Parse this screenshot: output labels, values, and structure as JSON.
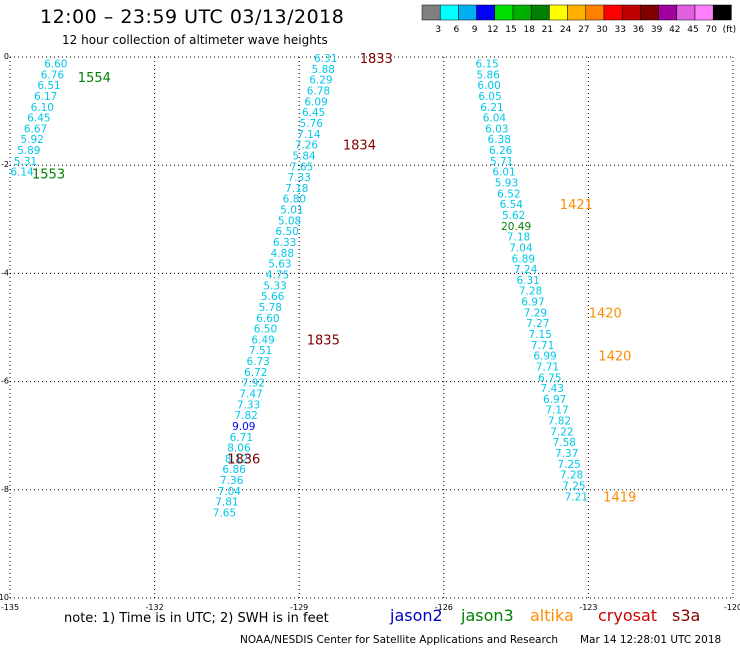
{
  "title": "12:00 – 23:59 UTC 03/13/2018",
  "subtitle": "12 hour collection of altimeter wave heights",
  "colorbar": {
    "colors": [
      "#808080",
      "#00ffff",
      "#00b0f0",
      "#0000ff",
      "#00e000",
      "#00b000",
      "#008000",
      "#ffff00",
      "#ffb000",
      "#ff8000",
      "#ff0000",
      "#c00000",
      "#800000",
      "#a000a0",
      "#e060e0",
      "#ff80ff",
      "#000000"
    ],
    "labels": [
      "3",
      "6",
      "9",
      "12",
      "15",
      "18",
      "21",
      "24",
      "27",
      "30",
      "33",
      "36",
      "39",
      "42",
      "45",
      "70",
      "(ft)"
    ]
  },
  "note": "note:  1) Time is in UTC;  2) SWH is in feet",
  "satellites": [
    {
      "name": "jason2",
      "color": "#0000cc"
    },
    {
      "name": "jason3",
      "color": "#008000"
    },
    {
      "name": "altika",
      "color": "#ff8c00"
    },
    {
      "name": "cryosat",
      "color": "#cc0000"
    },
    {
      "name": "s3a",
      "color": "#800000"
    }
  ],
  "footer_left": "NOAA/NESDIS Center for Satellite Applications and Research",
  "footer_right": "Mar 14 12:28:01 UTC 2018",
  "chart_data": {
    "type": "scatter",
    "xlim": [
      -135,
      -120
    ],
    "ylim": [
      -10,
      0
    ],
    "xticks": [
      "-135",
      "-132",
      "-129",
      "-126",
      "-123",
      "-120"
    ],
    "yticks": [
      "0",
      "-2",
      "-4",
      "-6",
      "-8",
      "-10"
    ],
    "grid": true,
    "tracks": [
      {
        "name": "jason3",
        "color": "#00c8e8",
        "points": [
          {
            "lon": -134.05,
            "lat": -0.12,
            "swh": "6.60"
          },
          {
            "lon": -134.12,
            "lat": -0.32,
            "swh": "6.76"
          },
          {
            "lon": -134.19,
            "lat": -0.52,
            "swh": "6.51"
          },
          {
            "lon": -134.26,
            "lat": -0.72,
            "swh": "6.17"
          },
          {
            "lon": -134.33,
            "lat": -0.92,
            "swh": "6.10"
          },
          {
            "lon": -134.4,
            "lat": -1.12,
            "swh": "6.45"
          },
          {
            "lon": -134.47,
            "lat": -1.32,
            "swh": "6.67"
          },
          {
            "lon": -134.54,
            "lat": -1.52,
            "swh": "5.92"
          },
          {
            "lon": -134.61,
            "lat": -1.72,
            "swh": "5.89"
          },
          {
            "lon": -134.68,
            "lat": -1.92,
            "swh": "5.31"
          },
          {
            "lon": -134.75,
            "lat": -2.12,
            "swh": "6.14"
          }
        ],
        "labels": [
          {
            "text": "1554",
            "lon": -133.25,
            "lat": -0.37
          },
          {
            "text": "1553",
            "lon": -134.2,
            "lat": -2.15
          }
        ],
        "label_color": "#008000"
      },
      {
        "name": "s3a",
        "color": "#00c8e8",
        "points": [
          {
            "lon": -128.45,
            "lat": -0.02,
            "swh": "6.31"
          },
          {
            "lon": -128.5,
            "lat": -0.22,
            "swh": "5.88"
          },
          {
            "lon": -128.55,
            "lat": -0.42,
            "swh": "6.29"
          },
          {
            "lon": -128.6,
            "lat": -0.62,
            "swh": "6.78"
          },
          {
            "lon": -128.65,
            "lat": -0.82,
            "swh": "6.09"
          },
          {
            "lon": -128.7,
            "lat": -1.02,
            "swh": "6.45"
          },
          {
            "lon": -128.75,
            "lat": -1.22,
            "swh": "5.76"
          },
          {
            "lon": -128.8,
            "lat": -1.42,
            "swh": "7.14"
          },
          {
            "lon": -128.85,
            "lat": -1.62,
            "swh": "7.26"
          },
          {
            "lon": -128.9,
            "lat": -1.82,
            "swh": "5.84"
          },
          {
            "lon": -128.95,
            "lat": -2.02,
            "swh": "7.65"
          },
          {
            "lon": -129.0,
            "lat": -2.22,
            "swh": "7.33"
          },
          {
            "lon": -129.05,
            "lat": -2.42,
            "swh": "7.18"
          },
          {
            "lon": -129.1,
            "lat": -2.62,
            "swh": "6.80"
          },
          {
            "lon": -129.15,
            "lat": -2.82,
            "swh": "5.01"
          },
          {
            "lon": -129.2,
            "lat": -3.02,
            "swh": "5.08"
          },
          {
            "lon": -129.25,
            "lat": -3.22,
            "swh": "6.50"
          },
          {
            "lon": -129.3,
            "lat": -3.42,
            "swh": "6.33"
          },
          {
            "lon": -129.35,
            "lat": -3.62,
            "swh": "4.88"
          },
          {
            "lon": -129.4,
            "lat": -3.82,
            "swh": "5.63"
          },
          {
            "lon": -129.45,
            "lat": -4.02,
            "swh": "4.75"
          },
          {
            "lon": -129.5,
            "lat": -4.22,
            "swh": "5.33"
          },
          {
            "lon": -129.55,
            "lat": -4.42,
            "swh": "5.66"
          },
          {
            "lon": -129.6,
            "lat": -4.62,
            "swh": "5.78"
          },
          {
            "lon": -129.65,
            "lat": -4.82,
            "swh": "6.60"
          },
          {
            "lon": -129.7,
            "lat": -5.02,
            "swh": "6.50"
          },
          {
            "lon": -129.75,
            "lat": -5.22,
            "swh": "6.49"
          },
          {
            "lon": -129.8,
            "lat": -5.42,
            "swh": "7.51"
          },
          {
            "lon": -129.85,
            "lat": -5.62,
            "swh": "6.73"
          },
          {
            "lon": -129.9,
            "lat": -5.82,
            "swh": "6.72"
          },
          {
            "lon": -129.95,
            "lat": -6.02,
            "swh": "7.92"
          },
          {
            "lon": -130.0,
            "lat": -6.22,
            "swh": "7.47"
          },
          {
            "lon": -130.05,
            "lat": -6.42,
            "swh": "7.33"
          },
          {
            "lon": -130.1,
            "lat": -6.62,
            "swh": "7.82"
          },
          {
            "lon": -130.15,
            "lat": -6.82,
            "swh": "9.09",
            "color": "#0000ff"
          },
          {
            "lon": -130.2,
            "lat": -7.02,
            "swh": "6.71"
          },
          {
            "lon": -130.25,
            "lat": -7.22,
            "swh": "8.06"
          },
          {
            "lon": -130.3,
            "lat": -7.42,
            "swh": "8.12"
          },
          {
            "lon": -130.35,
            "lat": -7.62,
            "swh": "6.86"
          },
          {
            "lon": -130.4,
            "lat": -7.82,
            "swh": "7.36"
          },
          {
            "lon": -130.45,
            "lat": -8.02,
            "swh": "7.04"
          },
          {
            "lon": -130.5,
            "lat": -8.22,
            "swh": "7.81"
          },
          {
            "lon": -130.55,
            "lat": -8.42,
            "swh": "7.65"
          }
        ],
        "labels": [
          {
            "text": "1833",
            "lon": -127.4,
            "lat": -0.02
          },
          {
            "text": "1834",
            "lon": -127.75,
            "lat": -1.62
          },
          {
            "text": "1835",
            "lon": -128.5,
            "lat": -5.22
          },
          {
            "text": "1836",
            "lon": -130.15,
            "lat": -7.42
          }
        ],
        "label_color": "#800000"
      },
      {
        "name": "altika",
        "color": "#00c8e8",
        "points": [
          {
            "lon": -125.1,
            "lat": -0.12,
            "swh": "6.15"
          },
          {
            "lon": -125.08,
            "lat": -0.32,
            "swh": "5.86"
          },
          {
            "lon": -125.06,
            "lat": -0.52,
            "swh": "6.00"
          },
          {
            "lon": -125.04,
            "lat": -0.72,
            "swh": "6.05"
          },
          {
            "lon": -125.0,
            "lat": -0.92,
            "swh": "6.21"
          },
          {
            "lon": -124.95,
            "lat": -1.12,
            "swh": "6.04"
          },
          {
            "lon": -124.9,
            "lat": -1.32,
            "swh": "6.03"
          },
          {
            "lon": -124.85,
            "lat": -1.52,
            "swh": "6.38"
          },
          {
            "lon": -124.82,
            "lat": -1.72,
            "swh": "6.26"
          },
          {
            "lon": -124.8,
            "lat": -1.92,
            "swh": "5.71"
          },
          {
            "lon": -124.75,
            "lat": -2.12,
            "swh": "6.01"
          },
          {
            "lon": -124.7,
            "lat": -2.32,
            "swh": "5.93"
          },
          {
            "lon": -124.65,
            "lat": -2.52,
            "swh": "6.52"
          },
          {
            "lon": -124.6,
            "lat": -2.72,
            "swh": "6.54"
          },
          {
            "lon": -124.55,
            "lat": -2.92,
            "swh": "5.62"
          },
          {
            "lon": -124.5,
            "lat": -3.12,
            "swh": "20.49",
            "color": "#008000"
          },
          {
            "lon": -124.45,
            "lat": -3.32,
            "swh": "7.18"
          },
          {
            "lon": -124.4,
            "lat": -3.52,
            "swh": "7.04"
          },
          {
            "lon": -124.35,
            "lat": -3.72,
            "swh": "6.89"
          },
          {
            "lon": -124.3,
            "lat": -3.92,
            "swh": "7.24"
          },
          {
            "lon": -124.25,
            "lat": -4.12,
            "swh": "6.31"
          },
          {
            "lon": -124.2,
            "lat": -4.32,
            "swh": "7.28"
          },
          {
            "lon": -124.15,
            "lat": -4.52,
            "swh": "6.97"
          },
          {
            "lon": -124.1,
            "lat": -4.72,
            "swh": "7.29"
          },
          {
            "lon": -124.05,
            "lat": -4.92,
            "swh": "7.27"
          },
          {
            "lon": -124.0,
            "lat": -5.12,
            "swh": "7.15"
          },
          {
            "lon": -123.95,
            "lat": -5.32,
            "swh": "7.71"
          },
          {
            "lon": -123.9,
            "lat": -5.52,
            "swh": "6.99"
          },
          {
            "lon": -123.85,
            "lat": -5.72,
            "swh": "7.71"
          },
          {
            "lon": -123.8,
            "lat": -5.92,
            "swh": "6.75"
          },
          {
            "lon": -123.75,
            "lat": -6.12,
            "swh": "7.43"
          },
          {
            "lon": -123.7,
            "lat": -6.32,
            "swh": "6.97"
          },
          {
            "lon": -123.65,
            "lat": -6.52,
            "swh": "7.17"
          },
          {
            "lon": -123.6,
            "lat": -6.72,
            "swh": "7.82"
          },
          {
            "lon": -123.55,
            "lat": -6.92,
            "swh": "7.22"
          },
          {
            "lon": -123.5,
            "lat": -7.12,
            "swh": "7.58"
          },
          {
            "lon": -123.45,
            "lat": -7.32,
            "swh": "7.37"
          },
          {
            "lon": -123.4,
            "lat": -7.52,
            "swh": "7.25"
          },
          {
            "lon": -123.35,
            "lat": -7.72,
            "swh": "7.28"
          },
          {
            "lon": -123.3,
            "lat": -7.92,
            "swh": "7.25"
          },
          {
            "lon": -123.25,
            "lat": -8.12,
            "swh": "7.21"
          }
        ],
        "labels": [
          {
            "text": "1421",
            "lon": -123.25,
            "lat": -2.72
          },
          {
            "text": "1420",
            "lon": -122.65,
            "lat": -4.72
          },
          {
            "text": "1420",
            "lon": -122.45,
            "lat": -5.52
          },
          {
            "text": "1419",
            "lon": -122.35,
            "lat": -8.12
          }
        ],
        "label_color": "#ff8c00"
      }
    ]
  }
}
